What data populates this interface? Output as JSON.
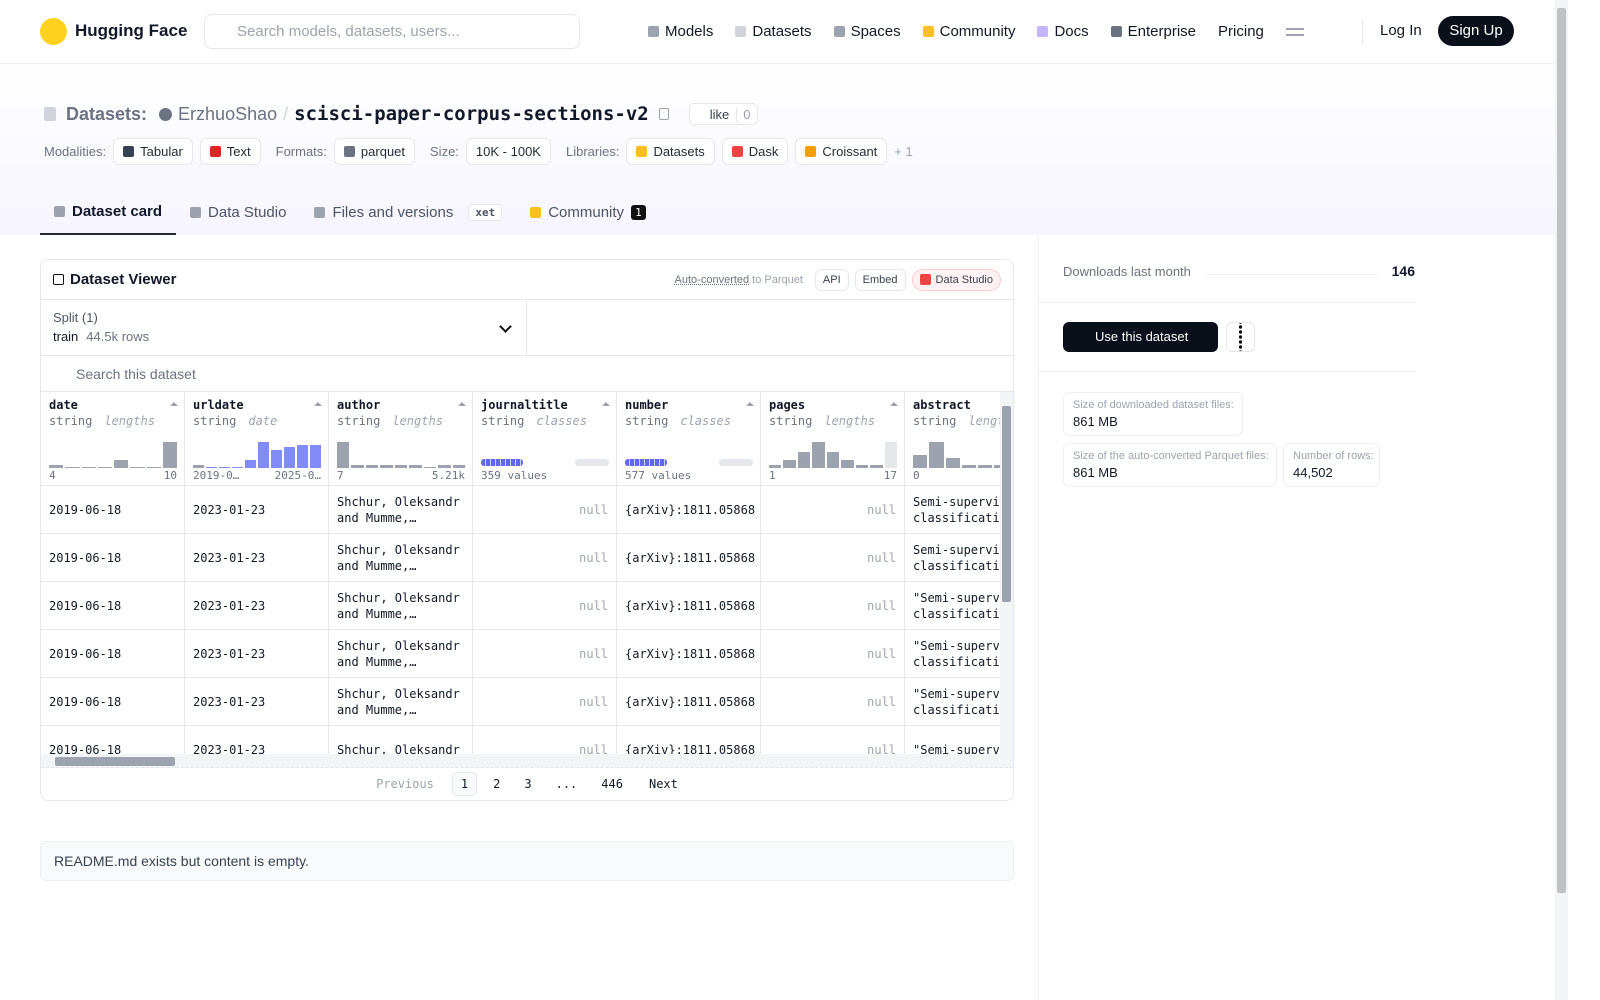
{
  "nav": {
    "logo": "Hugging Face",
    "search": "Search models, datasets, users...",
    "links": [
      "Models",
      "Datasets",
      "Spaces",
      "Community",
      "Docs",
      "Enterprise",
      "Pricing"
    ],
    "login": "Log In",
    "signup": "Sign Up"
  },
  "header": {
    "section": "Datasets:",
    "owner": "ErzhuoShao",
    "separator": "/",
    "name": "scisci-paper-corpus-sections-v2",
    "like": "like",
    "likes": 0,
    "tag_groups": [
      {
        "label": "Modalities:",
        "tags": [
          "Tabular",
          "Text"
        ]
      },
      {
        "label": "Formats:",
        "tags": [
          "parquet"
        ]
      },
      {
        "label": "Size:",
        "tags": [
          "10K - 100K"
        ]
      },
      {
        "label": "Libraries:",
        "tags": [
          "Datasets",
          "Dask",
          "Croissant"
        ]
      }
    ],
    "more": "+ 1"
  },
  "tabs": [
    {
      "label": "Dataset card"
    },
    {
      "label": "Data Studio"
    },
    {
      "label": "Files and versions",
      "badge": "xet"
    },
    {
      "label": "Community",
      "badge": 1
    }
  ],
  "viewer": {
    "title": "Dataset Viewer",
    "converted": "Auto-converted",
    "converted_suffix": "to Parquet",
    "buttons": [
      "API",
      "Embed",
      "Data Studio"
    ],
    "split_label": "Split (1)",
    "split": "train",
    "split_rows": "44.5k rows",
    "search": "Search this dataset",
    "columns": [
      {
        "name": "date",
        "type": "string",
        "kind": "lengths",
        "histogram": [
          1,
          0,
          0,
          0,
          3,
          0,
          0,
          10
        ],
        "min": "4",
        "max": "10"
      },
      {
        "name": "urldate",
        "type": "string",
        "kind": "date",
        "histogram": [
          1,
          0,
          0,
          0,
          3,
          10,
          7,
          8,
          9,
          9
        ],
        "min": "2019-0…",
        "max": "2025-0…"
      },
      {
        "name": "author",
        "type": "string",
        "kind": "lengths",
        "histogram": [
          10,
          1,
          1,
          1,
          1,
          1,
          0,
          1,
          1
        ],
        "min": "7",
        "max": "5.21k"
      },
      {
        "name": "journaltitle",
        "type": "string",
        "kind": "classes",
        "values_label": "359 values"
      },
      {
        "name": "number",
        "type": "string",
        "kind": "classes",
        "values_label": "577 values"
      },
      {
        "name": "pages",
        "type": "string",
        "kind": "lengths",
        "histogram": [
          1,
          3,
          6,
          10,
          6,
          3,
          1,
          1,
          10
        ],
        "min": "1",
        "max": "17"
      },
      {
        "name": "abstract",
        "type": "string",
        "kind": "lengths",
        "histogram": [
          5,
          10,
          4,
          1,
          1,
          1,
          1,
          1
        ],
        "min": "0"
      }
    ],
    "rows": [
      [
        "2019-06-18",
        "2023-01-23",
        "Shchur, Oleksandr and Mumme,…",
        "null",
        "{arXiv}:1811.05868",
        "null",
        "Semi-supervised classification"
      ],
      [
        "2019-06-18",
        "2023-01-23",
        "Shchur, Oleksandr and Mumme,…",
        "null",
        "{arXiv}:1811.05868",
        "null",
        "Semi-supervised classification"
      ],
      [
        "2019-06-18",
        "2023-01-23",
        "Shchur, Oleksandr and Mumme,…",
        "null",
        "{arXiv}:1811.05868",
        "null",
        "\"Semi-supervised classification"
      ],
      [
        "2019-06-18",
        "2023-01-23",
        "Shchur, Oleksandr and Mumme,…",
        "null",
        "{arXiv}:1811.05868",
        "null",
        "\"Semi-supervised classification"
      ],
      [
        "2019-06-18",
        "2023-01-23",
        "Shchur, Oleksandr and Mumme,…",
        "null",
        "{arXiv}:1811.05868",
        "null",
        "\"Semi-supervised classification"
      ],
      [
        "2019-06-18",
        "2023-01-23",
        "Shchur, Oleksandr",
        "null",
        "{arXiv}:1811.05868",
        "null",
        "\"Semi-supervised"
      ]
    ],
    "pagination": {
      "previous": "Previous",
      "pages": [
        1,
        2,
        3,
        "...",
        446
      ],
      "next": "Next"
    }
  },
  "readme": "README.md exists but content is empty.",
  "sidebar": {
    "downloads_label": "Downloads last month",
    "downloads": 146,
    "use": "Use this dataset",
    "stats": [
      {
        "label": "Size of downloaded dataset files:",
        "value": "861 MB"
      },
      {
        "label": "Size of the auto-converted Parquet files:",
        "value": "861 MB"
      },
      {
        "label": "Number of rows:",
        "value": "44,502"
      }
    ]
  }
}
